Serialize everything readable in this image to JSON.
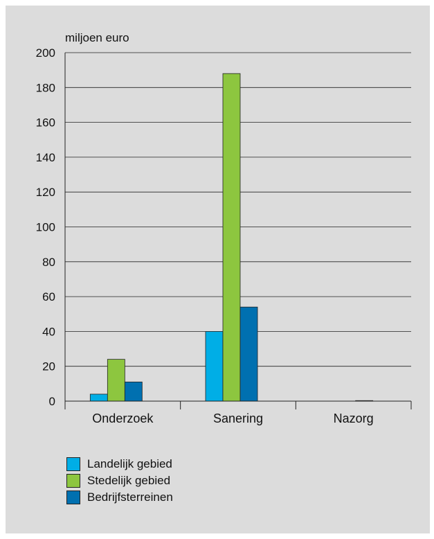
{
  "chart_data": {
    "type": "bar",
    "ylabel": "miljoen euro",
    "categories": [
      "Onderzoek",
      "Sanering",
      "Nazorg"
    ],
    "ylim": [
      0,
      200
    ],
    "yticks": [
      0,
      20,
      40,
      60,
      80,
      100,
      120,
      140,
      160,
      180,
      200
    ],
    "grid": true,
    "legend_position": "bottom-left",
    "series": [
      {
        "name": "Landelijk gebied",
        "color": "#00aee6",
        "values": [
          4,
          40,
          0
        ]
      },
      {
        "name": "Stedelijk gebied",
        "color": "#8dc63f",
        "values": [
          24,
          188,
          0
        ]
      },
      {
        "name": "Bedrijfsterreinen",
        "color": "#0070b0",
        "values": [
          11,
          54,
          0.3
        ]
      }
    ]
  }
}
